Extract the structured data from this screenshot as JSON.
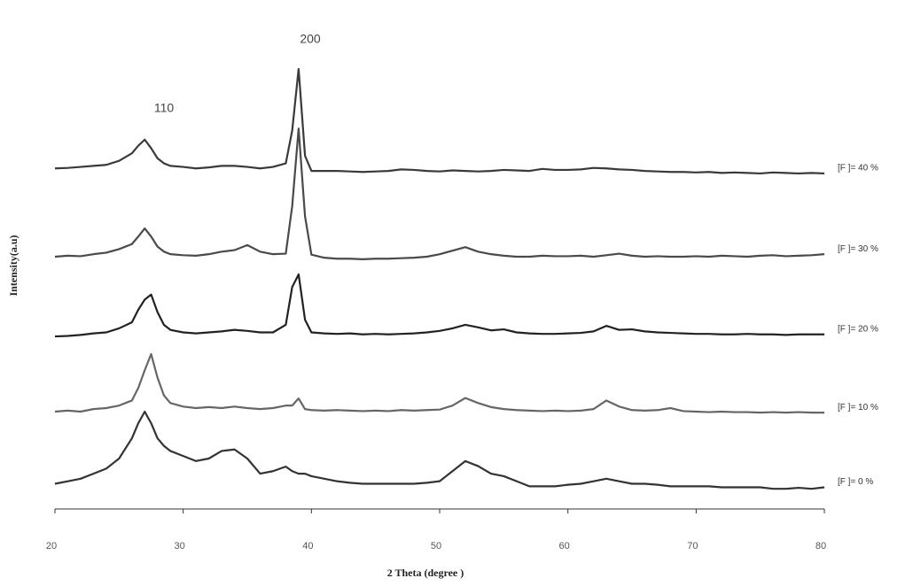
{
  "chart_data": {
    "type": "line",
    "x_label": "2  Theta    (degree      )",
    "y_label": "Intensity(a.u)",
    "annotations": [
      "110",
      "200"
    ],
    "x": [
      20,
      21,
      22,
      23,
      24,
      25,
      26,
      26.5,
      27,
      27.5,
      28,
      28.5,
      29,
      30,
      31,
      32,
      33,
      34,
      35,
      36,
      37,
      38,
      38.5,
      39,
      39.5,
      40,
      41,
      42,
      43,
      44,
      45,
      46,
      47,
      48,
      49,
      50,
      51,
      52,
      53,
      54,
      55,
      56,
      57,
      58,
      59,
      60,
      61,
      62,
      63,
      64,
      65,
      66,
      67,
      68,
      69,
      70,
      71,
      72,
      73,
      74,
      75,
      76,
      77,
      78,
      79,
      80
    ],
    "xlim": [
      20,
      80
    ],
    "xticks": [
      20,
      30,
      40,
      50,
      60,
      70,
      80
    ],
    "ylim": [
      0,
      100
    ],
    "series": [
      {
        "name": "[F ]=  40  %",
        "color": "#3a3a3a",
        "values": [
          67.5,
          67.6,
          67.8,
          68,
          68.2,
          69,
          70.5,
          72,
          73.2,
          71.5,
          69.5,
          68.5,
          68,
          67.8,
          67.5,
          67.7,
          68,
          68,
          67.8,
          67.5,
          67.8,
          68.5,
          75,
          87.2,
          70,
          67,
          67,
          67,
          66.9,
          66.8,
          66.9,
          67,
          67.3,
          67.2,
          67,
          66.9,
          67.1,
          67,
          66.9,
          67,
          67.2,
          67.1,
          67,
          67.4,
          67.2,
          67.2,
          67.3,
          67.6,
          67.5,
          67.3,
          67.2,
          67,
          66.9,
          66.8,
          66.8,
          66.7,
          66.8,
          66.6,
          66.7,
          66.6,
          66.5,
          66.7,
          66.6,
          66.5,
          66.6,
          66.5
        ]
      },
      {
        "name": "[F ]=  30  %",
        "color": "#4a4a4a",
        "values": [
          50,
          50.2,
          50.1,
          50.5,
          50.8,
          51.5,
          52.5,
          54,
          55.6,
          54,
          52,
          51,
          50.5,
          50.3,
          50.2,
          50.5,
          51,
          51.3,
          52.3,
          51,
          50.5,
          50.6,
          60,
          75.4,
          58,
          50.4,
          49.8,
          49.6,
          49.6,
          49.5,
          49.6,
          49.6,
          49.7,
          49.8,
          50,
          50.5,
          51.2,
          51.9,
          51,
          50.5,
          50.2,
          50,
          50,
          50.2,
          50.1,
          50.1,
          50.2,
          50,
          50.3,
          50.6,
          50.2,
          50,
          50.1,
          50,
          50,
          50.1,
          50,
          50.2,
          50.1,
          50,
          50.2,
          50.3,
          50.1,
          50.2,
          50.3,
          50.5
        ]
      },
      {
        "name": "[F ]=  20  %",
        "color": "#222222",
        "values": [
          34.2,
          34.3,
          34.5,
          34.8,
          35,
          35.8,
          37,
          39.5,
          41.5,
          42.5,
          39,
          36.5,
          35.5,
          35,
          34.8,
          35,
          35.2,
          35.5,
          35.3,
          35,
          35,
          36.5,
          44,
          46.5,
          37.5,
          35,
          34.8,
          34.7,
          34.8,
          34.6,
          34.7,
          34.6,
          34.7,
          34.8,
          35,
          35.3,
          35.8,
          36.5,
          36,
          35.4,
          35.6,
          35,
          34.8,
          34.7,
          34.7,
          34.8,
          34.9,
          35.2,
          36.3,
          35.5,
          35.6,
          35.2,
          35,
          34.9,
          34.8,
          34.7,
          34.7,
          34.6,
          34.6,
          34.7,
          34.6,
          34.6,
          34.5,
          34.6,
          34.6,
          34.6
        ]
      },
      {
        "name": "[F ]=  10  %",
        "color": "#666666",
        "values": [
          19.3,
          19.5,
          19.3,
          19.8,
          20,
          20.5,
          21.5,
          24,
          27.5,
          30.7,
          26,
          22.5,
          21,
          20.3,
          20,
          20.2,
          20,
          20.3,
          20,
          19.8,
          20,
          20.5,
          20.5,
          21.9,
          19.8,
          19.6,
          19.5,
          19.6,
          19.5,
          19.4,
          19.5,
          19.4,
          19.6,
          19.5,
          19.6,
          19.7,
          20.5,
          22,
          21,
          20.2,
          19.8,
          19.6,
          19.5,
          19.4,
          19.5,
          19.4,
          19.5,
          19.8,
          21.5,
          20.3,
          19.6,
          19.5,
          19.6,
          20,
          19.4,
          19.3,
          19.2,
          19.3,
          19.2,
          19.2,
          19.1,
          19.2,
          19.1,
          19.2,
          19.1,
          19.1
        ]
      },
      {
        "name": "[F ]= 0 %",
        "color": "#333333",
        "values": [
          5,
          5.5,
          6,
          7,
          8,
          10,
          14,
          17,
          19.3,
          17,
          14,
          12.5,
          11.5,
          10.5,
          9.5,
          10,
          11.5,
          11.8,
          10,
          7,
          7.5,
          8.4,
          7.5,
          7,
          7,
          6.5,
          6,
          5.5,
          5.2,
          5,
          5,
          5,
          5,
          5,
          5.2,
          5.5,
          7.5,
          9.5,
          8.5,
          7,
          6.5,
          5.5,
          4.5,
          4.5,
          4.5,
          4.8,
          5,
          5.5,
          6,
          5.5,
          5,
          5,
          4.8,
          4.5,
          4.5,
          4.5,
          4.5,
          4.3,
          4.3,
          4.3,
          4.3,
          4,
          4,
          4.2,
          4,
          4.3
        ]
      }
    ]
  }
}
